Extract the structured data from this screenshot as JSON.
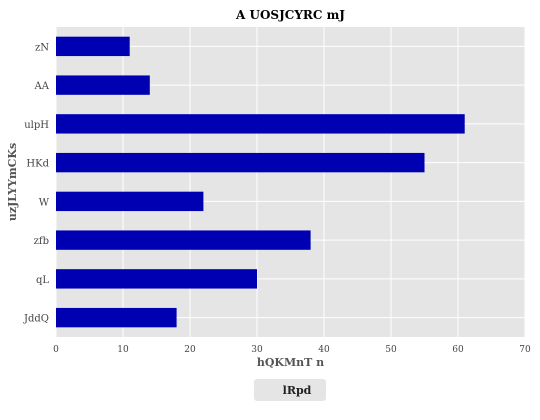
{
  "chart_data": {
    "type": "bar",
    "orientation": "horizontal",
    "title": "A UOSJCYRC mJ",
    "xlabel": "hQKMnT n",
    "ylabel": "uzJLYYmCKs",
    "categories": [
      "zN",
      "AA",
      "ulpH",
      "HKd",
      "W",
      "zfb",
      "qL",
      "JddQ"
    ],
    "series": [
      {
        "name": "lRpd",
        "values": [
          11,
          14,
          61,
          55,
          22,
          38,
          30,
          18
        ]
      }
    ],
    "xlim": [
      0,
      70
    ],
    "xticks": [
      0,
      10,
      20,
      30,
      40,
      50,
      60,
      70
    ],
    "grid": true,
    "legend_position": "bottom-center",
    "colors": {
      "bar": "#0000b3",
      "plot_background": "#e5e5e5",
      "grid": "#ffffff"
    }
  }
}
